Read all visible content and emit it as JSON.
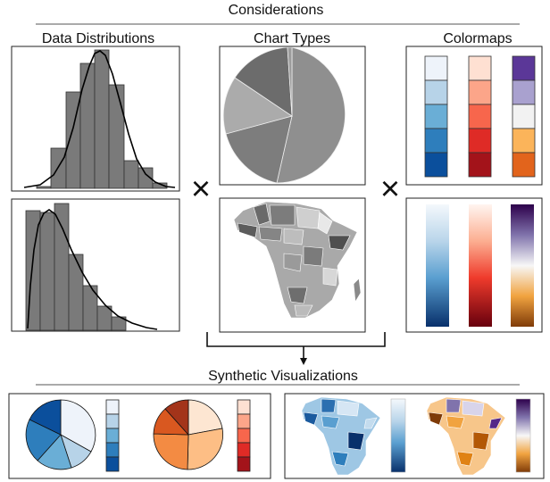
{
  "header": {
    "title": "Considerations"
  },
  "sections": {
    "distributions": "Data Distributions",
    "chart_types": "Chart Types",
    "colormaps": "Colormaps"
  },
  "operators": {
    "times_left": "×",
    "times_right": "×"
  },
  "output": {
    "title": "Synthetic Visualizations"
  },
  "colors": {
    "bar_fill": "#7a7a7a",
    "pie_grays": [
      "#8f8f8f",
      "#7d7d7d",
      "#ababab",
      "#6c6c6c",
      "#9c9c9c"
    ],
    "blues": [
      "#eef3fa",
      "#b7d3e8",
      "#6aaed6",
      "#2e7ebc",
      "#0b4f9c"
    ],
    "reds": [
      "#fee0d2",
      "#fca589",
      "#f7664c",
      "#df2b26",
      "#a3131a"
    ],
    "purple_orange": [
      "#5b3798",
      "#a9a1cf",
      "#f2f2f2",
      "#fbb45a",
      "#e2641c"
    ],
    "pie_oranges": [
      "#fde6d2",
      "#fdbe85",
      "#f38b43",
      "#d95820",
      "#a3341a"
    ]
  }
}
